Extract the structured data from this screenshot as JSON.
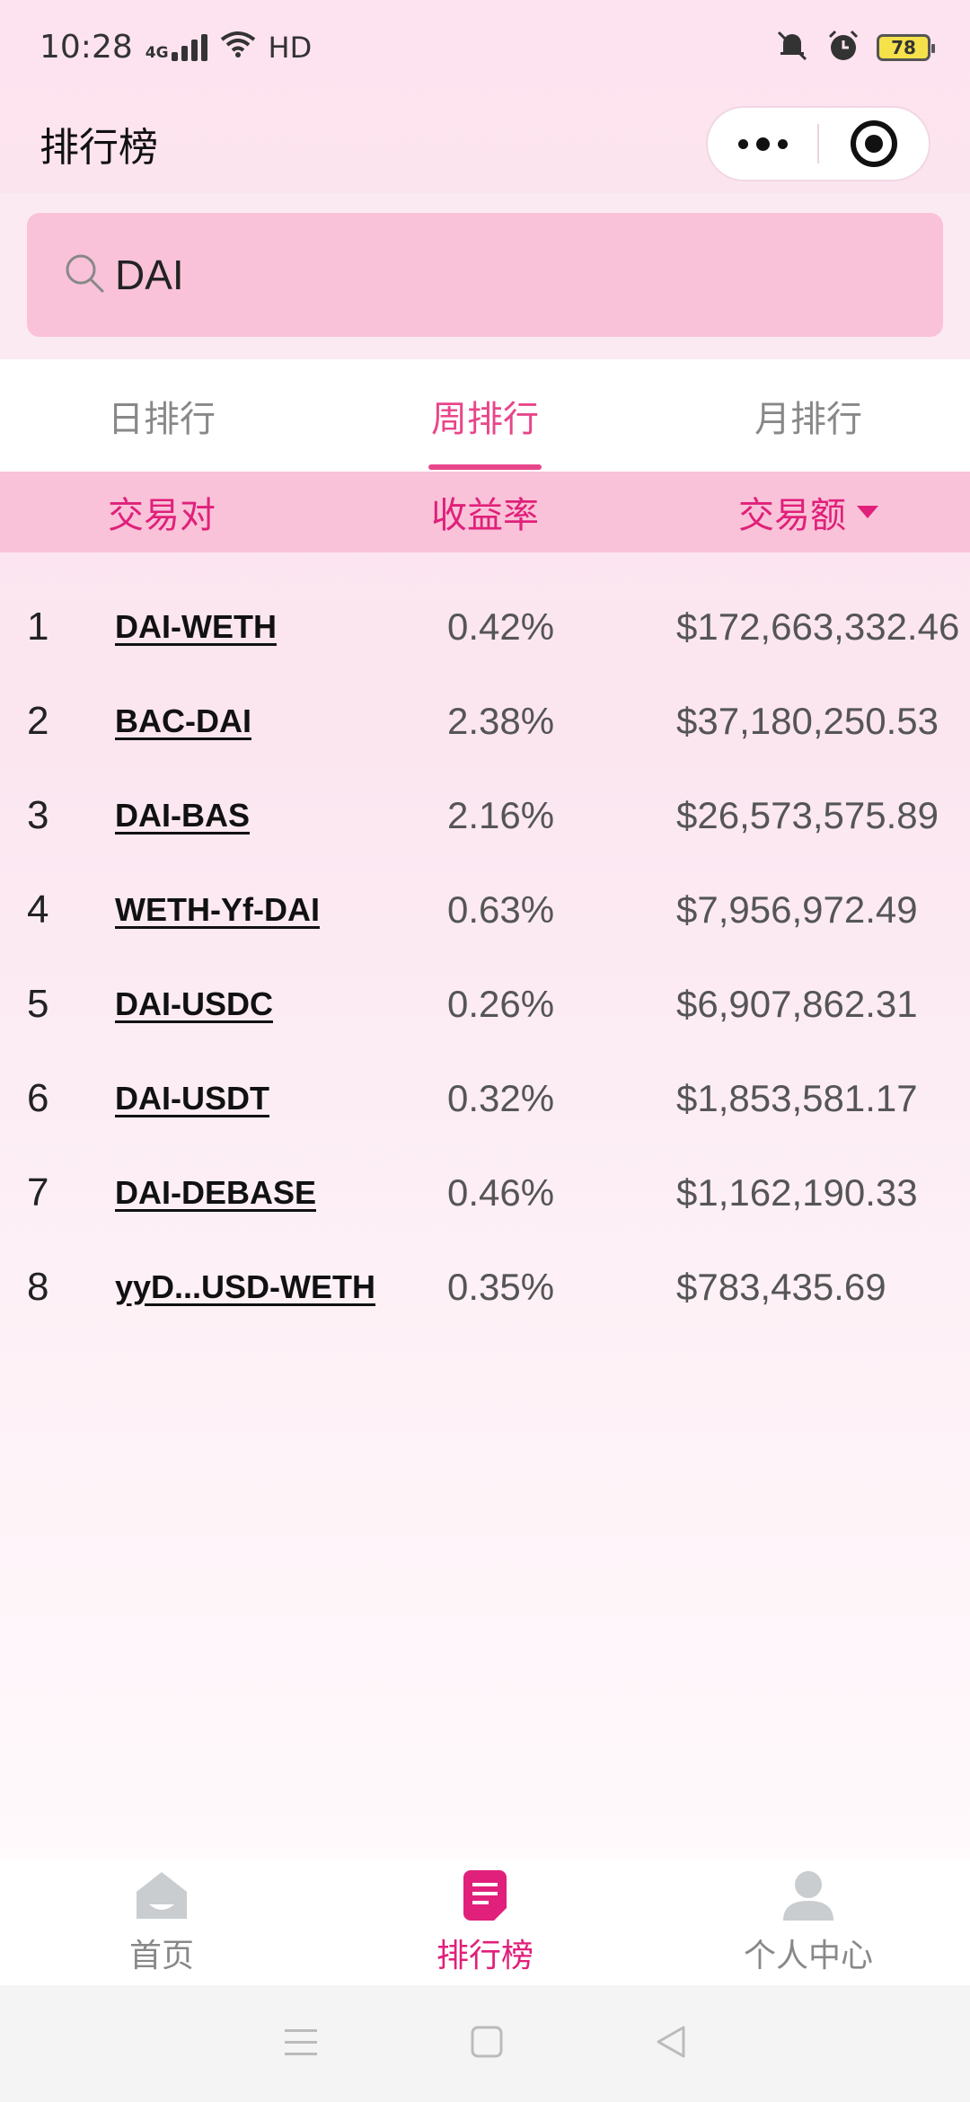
{
  "status_bar": {
    "time": "10:28",
    "network": "4G",
    "hd": "HD",
    "battery": "78"
  },
  "header": {
    "title": "排行榜"
  },
  "search": {
    "value": "DAI",
    "placeholder": ""
  },
  "tabs": [
    {
      "label": "日排行",
      "active": false
    },
    {
      "label": "周排行",
      "active": true
    },
    {
      "label": "月排行",
      "active": false
    }
  ],
  "table": {
    "columns": [
      "交易对",
      "收益率",
      "交易额"
    ],
    "sort_column": "交易额",
    "rows": [
      {
        "rank": "1",
        "pair": "DAI-WETH",
        "rate": "0.42%",
        "amount": "$172,663,332.46"
      },
      {
        "rank": "2",
        "pair": "BAC-DAI",
        "rate": "2.38%",
        "amount": "$37,180,250.53"
      },
      {
        "rank": "3",
        "pair": "DAI-BAS",
        "rate": "2.16%",
        "amount": "$26,573,575.89"
      },
      {
        "rank": "4",
        "pair": "WETH-Yf-DAI",
        "rate": "0.63%",
        "amount": "$7,956,972.49"
      },
      {
        "rank": "5",
        "pair": "DAI-USDC",
        "rate": "0.26%",
        "amount": "$6,907,862.31"
      },
      {
        "rank": "6",
        "pair": "DAI-USDT",
        "rate": "0.32%",
        "amount": "$1,853,581.17"
      },
      {
        "rank": "7",
        "pair": "DAI-DEBASE",
        "rate": "0.46%",
        "amount": "$1,162,190.33"
      },
      {
        "rank": "8",
        "pair": "yyD...USD-WETH",
        "rate": "0.35%",
        "amount": "$783,435.69"
      }
    ]
  },
  "bottom_nav": [
    {
      "label": "首页",
      "icon": "home-icon",
      "active": false
    },
    {
      "label": "排行榜",
      "icon": "ranking-doc-icon",
      "active": true
    },
    {
      "label": "个人中心",
      "icon": "user-icon",
      "active": false
    }
  ],
  "colors": {
    "accent": "#e0207a",
    "tab_active": "#e8468a",
    "header_bg": "#f9c2d8",
    "inactive": "#888888"
  }
}
